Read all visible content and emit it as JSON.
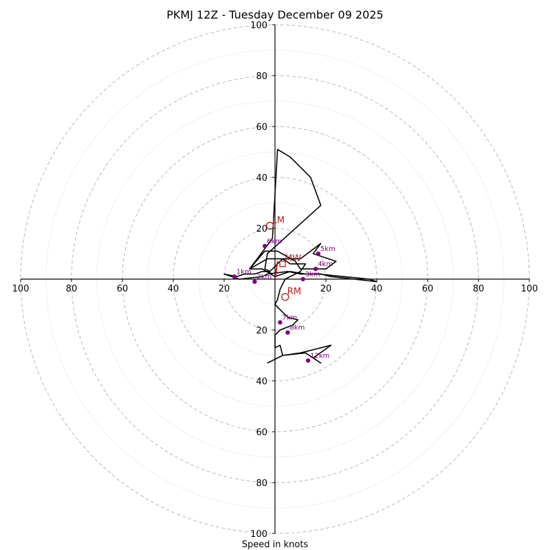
{
  "chart_data": {
    "type": "hodograph",
    "title": "PKMJ 12Z - Tuesday December 09 2025",
    "xlabel": "Speed in knots",
    "units": "knots",
    "range": [
      -100,
      100
    ],
    "rings_major": [
      20,
      40,
      60,
      80,
      100
    ],
    "rings_minor": [
      10,
      30,
      50,
      70,
      90
    ],
    "tick_values": [
      -100,
      -80,
      -60,
      -40,
      -20,
      20,
      40,
      60,
      80,
      100
    ],
    "hodograph_uv": [
      [
        -1,
        2
      ],
      [
        -3,
        3
      ],
      [
        -5,
        3
      ],
      [
        -8,
        2
      ],
      [
        -12,
        2
      ],
      [
        -15,
        1
      ],
      [
        -20,
        2
      ],
      [
        -14,
        0
      ],
      [
        -5,
        1
      ],
      [
        -3,
        2
      ],
      [
        5,
        3
      ],
      [
        10,
        2
      ],
      [
        17,
        2
      ],
      [
        37,
        0
      ],
      [
        40,
        -1
      ],
      [
        22,
        1
      ],
      [
        18,
        2
      ],
      [
        12,
        2
      ],
      [
        6,
        3
      ],
      [
        0,
        1
      ],
      [
        -5,
        4
      ],
      [
        -10,
        4
      ],
      [
        -3,
        8
      ],
      [
        10,
        8
      ],
      [
        18,
        14
      ],
      [
        15,
        10
      ],
      [
        24,
        7
      ],
      [
        20,
        4
      ],
      [
        10,
        4
      ],
      [
        8,
        7
      ],
      [
        1,
        11
      ],
      [
        -4,
        11
      ],
      [
        -10,
        4
      ],
      [
        -4,
        12
      ],
      [
        -1,
        16
      ],
      [
        1,
        51
      ],
      [
        6,
        48
      ],
      [
        14,
        40
      ],
      [
        18,
        29
      ],
      [
        -3,
        10
      ],
      [
        -4,
        4
      ],
      [
        -2,
        3
      ],
      [
        3,
        8
      ],
      [
        6,
        6
      ],
      [
        12,
        6
      ],
      [
        10,
        3
      ],
      [
        4,
        0
      ],
      [
        2,
        -4
      ],
      [
        1,
        -8
      ],
      [
        0,
        -10
      ],
      [
        3,
        -13
      ],
      [
        5,
        -15
      ],
      [
        9,
        -16
      ],
      [
        7,
        -18
      ],
      [
        2,
        -20
      ],
      [
        0,
        -22
      ],
      [
        0,
        -27
      ],
      [
        2,
        -26
      ],
      [
        3,
        -30
      ],
      [
        10,
        -29
      ],
      [
        22,
        -26
      ],
      [
        15,
        -31
      ],
      [
        18,
        -33
      ],
      [
        12,
        -29
      ],
      [
        3,
        -30
      ],
      [
        -3,
        -33
      ]
    ],
    "height_markers": [
      {
        "label": "1km",
        "u": -16,
        "v": 1
      },
      {
        "label": "2km",
        "u": -8,
        "v": -1
      },
      {
        "label": "3km",
        "u": 11,
        "v": 0
      },
      {
        "label": "4km",
        "u": 16,
        "v": 4
      },
      {
        "label": "5km",
        "u": 17,
        "v": 10
      },
      {
        "label": "6km",
        "u": -4,
        "v": 13
      },
      {
        "label": "7km",
        "u": 2,
        "v": -17
      },
      {
        "label": "8km",
        "u": 5,
        "v": -21
      },
      {
        "label": "12km",
        "u": 13,
        "v": -32
      }
    ],
    "storm_motion": [
      {
        "label": "LM",
        "u": -2,
        "v": 21
      },
      {
        "label": "RM",
        "u": 4,
        "v": -7
      }
    ],
    "mean_wind": {
      "label": "MW",
      "u": 3,
      "v": 6
    },
    "shear_vector": {
      "u0": 0,
      "v0": 0,
      "u1": 1,
      "v1": 7
    }
  }
}
